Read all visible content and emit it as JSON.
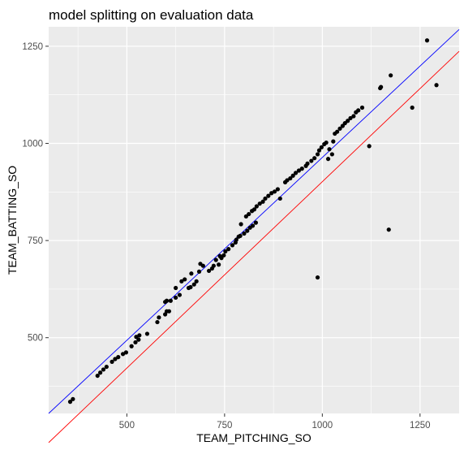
{
  "chart_data": {
    "type": "scatter",
    "title": "model splitting on evaluation data",
    "xlabel": "TEAM_PITCHING_SO",
    "ylabel": "TEAM_BATTING_SO",
    "xlim": [
      300,
      1350
    ],
    "ylim": [
      305,
      1300
    ],
    "x_ticks": [
      500,
      750,
      1000,
      1250
    ],
    "y_ticks": [
      500,
      750,
      1000,
      1250
    ],
    "x_tick_labels": [
      "500",
      "750",
      "1000",
      "1250"
    ],
    "y_tick_labels": [
      "500",
      "750",
      "1000",
      "1250"
    ],
    "grid": true,
    "legend": "none",
    "colors": {
      "panel": "#ebebeb",
      "grid": "#ffffff",
      "points": "#000000",
      "blue_line": "#0000ff",
      "red_line": "#ff0000"
    },
    "lines": [
      {
        "color": "#0000ff",
        "x": [
          300,
          1350
        ],
        "y": [
          305,
          1293
        ]
      },
      {
        "color": "#ff0000",
        "x": [
          300,
          1350
        ],
        "y": [
          230,
          1237
        ]
      }
    ],
    "points": [
      [
        355,
        335
      ],
      [
        362,
        342
      ],
      [
        425,
        402
      ],
      [
        432,
        410
      ],
      [
        440,
        418
      ],
      [
        448,
        425
      ],
      [
        462,
        438
      ],
      [
        470,
        445
      ],
      [
        478,
        450
      ],
      [
        490,
        458
      ],
      [
        498,
        462
      ],
      [
        512,
        478
      ],
      [
        522,
        488
      ],
      [
        530,
        495
      ],
      [
        524,
        502
      ],
      [
        532,
        506
      ],
      [
        552,
        510
      ],
      [
        578,
        540
      ],
      [
        582,
        552
      ],
      [
        598,
        560
      ],
      [
        602,
        568
      ],
      [
        608,
        568
      ],
      [
        598,
        592
      ],
      [
        602,
        595
      ],
      [
        612,
        595
      ],
      [
        625,
        603
      ],
      [
        635,
        610
      ],
      [
        625,
        628
      ],
      [
        640,
        645
      ],
      [
        648,
        650
      ],
      [
        658,
        628
      ],
      [
        663,
        630
      ],
      [
        672,
        637
      ],
      [
        678,
        645
      ],
      [
        665,
        665
      ],
      [
        685,
        670
      ],
      [
        695,
        685
      ],
      [
        688,
        690
      ],
      [
        710,
        672
      ],
      [
        718,
        678
      ],
      [
        722,
        685
      ],
      [
        735,
        688
      ],
      [
        728,
        700
      ],
      [
        742,
        705
      ],
      [
        738,
        710
      ],
      [
        748,
        712
      ],
      [
        752,
        722
      ],
      [
        760,
        728
      ],
      [
        770,
        738
      ],
      [
        778,
        745
      ],
      [
        780,
        752
      ],
      [
        786,
        760
      ],
      [
        790,
        762
      ],
      [
        800,
        768
      ],
      [
        808,
        775
      ],
      [
        815,
        783
      ],
      [
        822,
        788
      ],
      [
        830,
        796
      ],
      [
        792,
        792
      ],
      [
        805,
        812
      ],
      [
        812,
        818
      ],
      [
        820,
        826
      ],
      [
        826,
        830
      ],
      [
        832,
        838
      ],
      [
        840,
        845
      ],
      [
        848,
        850
      ],
      [
        854,
        858
      ],
      [
        862,
        865
      ],
      [
        870,
        872
      ],
      [
        878,
        876
      ],
      [
        886,
        882
      ],
      [
        892,
        858
      ],
      [
        905,
        900
      ],
      [
        910,
        905
      ],
      [
        918,
        910
      ],
      [
        925,
        917
      ],
      [
        932,
        924
      ],
      [
        940,
        930
      ],
      [
        948,
        935
      ],
      [
        958,
        942
      ],
      [
        962,
        948
      ],
      [
        972,
        955
      ],
      [
        980,
        962
      ],
      [
        988,
        972
      ],
      [
        992,
        982
      ],
      [
        998,
        990
      ],
      [
        1005,
        998
      ],
      [
        1010,
        1002
      ],
      [
        1015,
        960
      ],
      [
        1018,
        985
      ],
      [
        1025,
        972
      ],
      [
        1028,
        1005
      ],
      [
        1032,
        1025
      ],
      [
        1038,
        1030
      ],
      [
        1045,
        1038
      ],
      [
        1052,
        1045
      ],
      [
        1058,
        1052
      ],
      [
        1065,
        1058
      ],
      [
        1072,
        1065
      ],
      [
        1080,
        1070
      ],
      [
        1086,
        1080
      ],
      [
        1092,
        1085
      ],
      [
        1102,
        1092
      ],
      [
        1120,
        993
      ],
      [
        1148,
        1142
      ],
      [
        1150,
        1145
      ],
      [
        1175,
        1175
      ],
      [
        1230,
        1092
      ],
      [
        1268,
        1265
      ],
      [
        1292,
        1150
      ],
      [
        1170,
        778
      ],
      [
        988,
        655
      ]
    ]
  }
}
